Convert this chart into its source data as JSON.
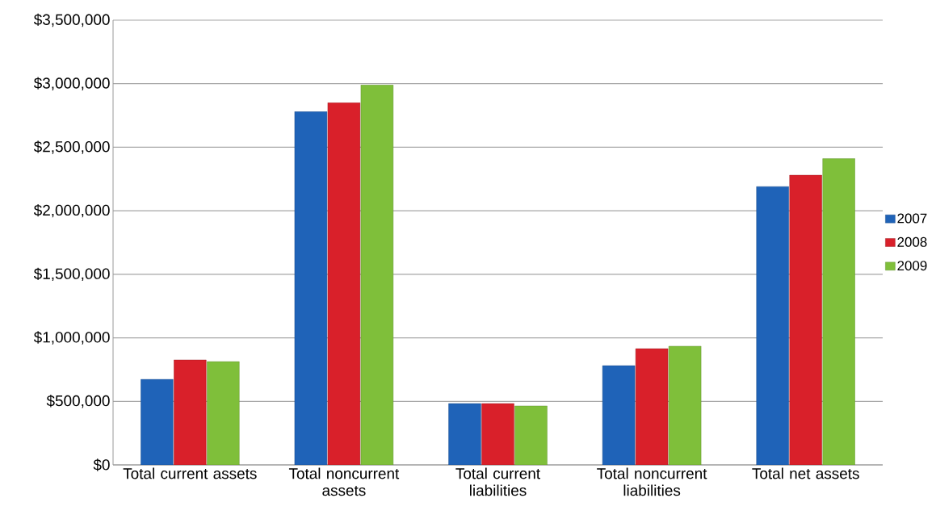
{
  "chart_data": {
    "type": "bar",
    "categories": [
      "Total current assets",
      "Total noncurrent assets",
      "Total current liabilities",
      "Total noncurrent liabilities",
      "Total net assets"
    ],
    "series": [
      {
        "name": "2007",
        "color": "#1f63b8",
        "values": [
          673000,
          2780000,
          483000,
          781000,
          2190000
        ]
      },
      {
        "name": "2008",
        "color": "#d9202a",
        "values": [
          826000,
          2850000,
          483000,
          915000,
          2280000
        ]
      },
      {
        "name": "2009",
        "color": "#7fbf3a",
        "values": [
          813000,
          2990000,
          464000,
          934000,
          2410000
        ]
      }
    ],
    "ylim": [
      0,
      3500000
    ],
    "yticks": [
      {
        "value": 0,
        "label": "$0"
      },
      {
        "value": 500000,
        "label": "$500,000"
      },
      {
        "value": 1000000,
        "label": "$1,000,000"
      },
      {
        "value": 1500000,
        "label": "$1,500,000"
      },
      {
        "value": 2000000,
        "label": "$2,000,000"
      },
      {
        "value": 2500000,
        "label": "$2,500,000"
      },
      {
        "value": 3000000,
        "label": "$3,000,000"
      },
      {
        "value": 3500000,
        "label": "$3,500,000"
      }
    ],
    "grid": "y",
    "legend": "right"
  }
}
